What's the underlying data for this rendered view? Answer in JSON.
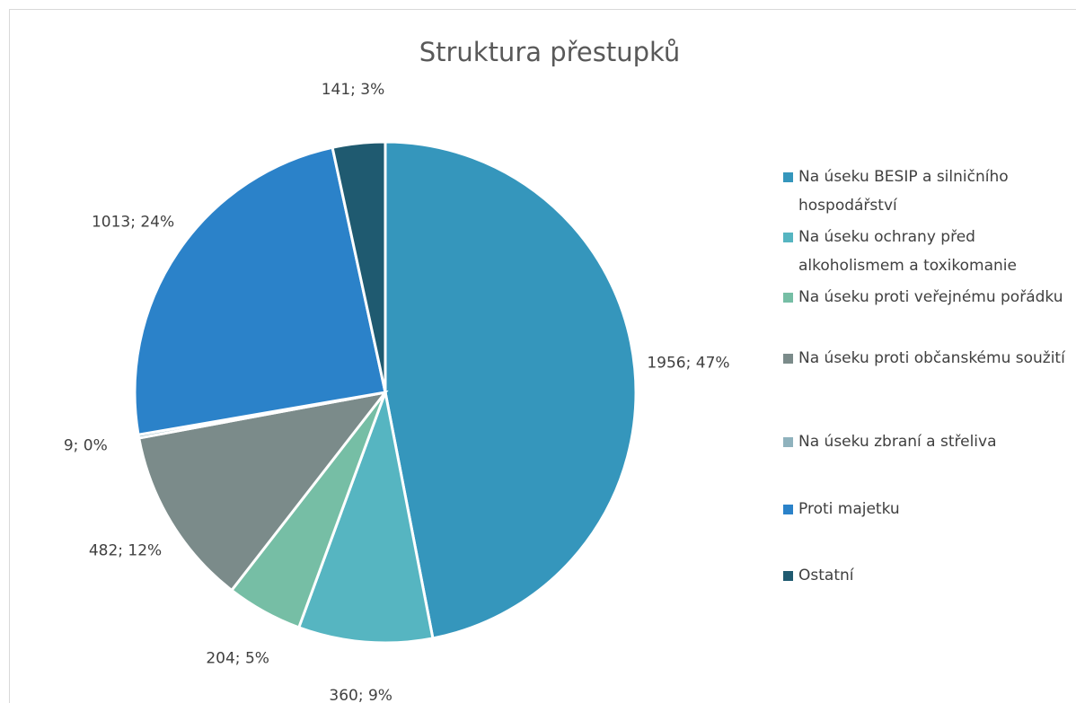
{
  "chart_data": {
    "type": "pie",
    "title": "Struktura přestupků",
    "categories": [
      "Na úseku BESIP a silničního hospodářství",
      "Na úseku ochrany před alkoholismem a toxikomanie",
      "Na úseku proti veřejnému pořádku",
      "Na úseku proti občanskému soužití",
      "Na úseku zbraní a střeliva",
      "Proti majetku",
      "Ostatní"
    ],
    "values": [
      1956,
      360,
      204,
      482,
      9,
      1013,
      141
    ],
    "value_labels": [
      "1956; 47%",
      "360; 9%",
      "204; 5%",
      "482; 12%",
      "9; 0%",
      "1013; 24%",
      "141; 3%"
    ],
    "colors": [
      "#3596bc",
      "#56b5c1",
      "#76bea5",
      "#7b8b8a",
      "#8fb2bd",
      "#2b82c9",
      "#1f5a70"
    ],
    "legend": "right"
  }
}
